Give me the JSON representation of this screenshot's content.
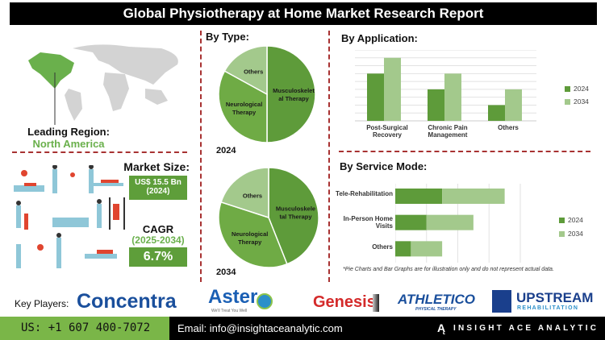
{
  "title": "Global Physiotherapy at Home Market Research Report",
  "region": {
    "label": "Leading Region:",
    "value": "North America"
  },
  "market_size": {
    "label": "Market Size:",
    "value": "US$ 15.5 Bn",
    "year": "(2024)"
  },
  "cagr": {
    "label": "CAGR",
    "period": "(2025-2034)",
    "value": "6.7%"
  },
  "by_type": {
    "heading": "By Type:"
  },
  "by_application": {
    "heading": "By Application:"
  },
  "by_service": {
    "heading": "By Service Mode:"
  },
  "note": "*Pie Charts and Bar Graphs are for illustration only and do not represent actual data.",
  "colors": {
    "dark_green": "#5e9b3a",
    "mid_green": "#6fab45",
    "light_green": "#a3c98c",
    "accent": "#7ab648",
    "divider": "#a83232"
  },
  "key_players": {
    "label": "Key Players:",
    "logos": [
      "Concentra",
      "Aster",
      "Genesis",
      "ATHLETICO",
      "UPSTREAM"
    ],
    "logo_subtitles": [
      "We'll Treat You Well",
      "PHYSICAL THERAPY",
      "REHABILITATION"
    ]
  },
  "footer": {
    "phone": "US: +1 607 400-7072",
    "email": "Email: info@insightaceanalytic.com",
    "brand": "INSIGHT ACE ANALYTIC"
  },
  "chart_data": [
    {
      "type": "pie",
      "title": "2024",
      "categories": [
        "Musculoskeletal Therapy",
        "Neurological Therapy",
        "Others"
      ],
      "labels": [
        "Musculoskelet al Therapy",
        "Neurological Therapy",
        "Others"
      ],
      "values": [
        50,
        33,
        17
      ]
    },
    {
      "type": "pie",
      "title": "2034",
      "categories": [
        "Musculoskeletal Therapy",
        "Neurological Therapy",
        "Others"
      ],
      "labels": [
        "Musculoskele tal Therapy",
        "Neurological Therapy",
        "Others"
      ],
      "values": [
        44,
        36,
        20
      ]
    },
    {
      "type": "bar",
      "categories": [
        "Post-Surgical Recovery",
        "Chronic Pain Management",
        "Others"
      ],
      "series": [
        {
          "name": "2024",
          "values": [
            6,
            4,
            2
          ]
        },
        {
          "name": "2034",
          "values": [
            8,
            6,
            4
          ]
        }
      ],
      "ylim": [
        0,
        9
      ],
      "grid": true,
      "legend": "right"
    },
    {
      "type": "bar",
      "orientation": "horizontal",
      "stacked": true,
      "categories": [
        "Tele-Rehabilitation",
        "In-Person Home Visits",
        "Others"
      ],
      "series": [
        {
          "name": "2024",
          "values": [
            3,
            2,
            1
          ]
        },
        {
          "name": "2034",
          "values": [
            4,
            3,
            2
          ]
        }
      ],
      "xlim": [
        0,
        8
      ],
      "grid": true,
      "legend": "right"
    }
  ]
}
